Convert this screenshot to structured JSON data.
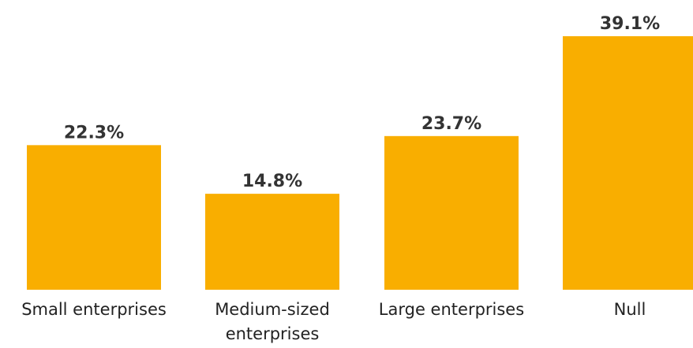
{
  "chart_data": {
    "type": "bar",
    "categories": [
      "Small enterprises",
      "Medium-sized enterprises",
      "Large enterprises",
      "Null"
    ],
    "category_lines": [
      [
        "Small enterprises"
      ],
      [
        "Medium-sized",
        "enterprises"
      ],
      [
        "Large enterprises"
      ],
      [
        "Null"
      ]
    ],
    "values": [
      22.3,
      14.8,
      23.7,
      39.1
    ],
    "value_labels": [
      "22.3%",
      "14.8%",
      "23.7%",
      "39.1%"
    ],
    "unit": "%",
    "ylim": [
      0,
      39.1
    ],
    "grid": false,
    "colors": {
      "bar": "#F9AE00",
      "value_text": "#333333",
      "category_text": "#222222"
    }
  }
}
